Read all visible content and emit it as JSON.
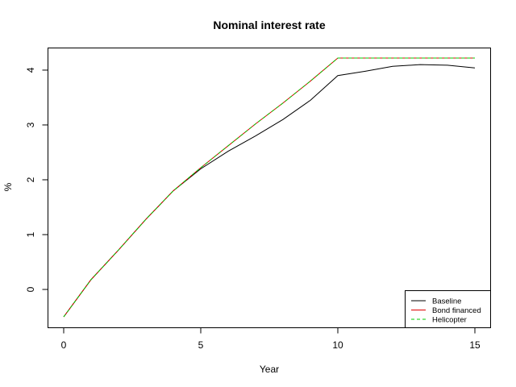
{
  "chart_data": {
    "type": "line",
    "title": "Nominal interest rate",
    "xlabel": "Year",
    "ylabel": "%",
    "xlim": [
      0,
      15
    ],
    "ylim": [
      -0.5,
      4.22
    ],
    "xticks": [
      0,
      5,
      10,
      15
    ],
    "yticks": [
      0,
      1,
      2,
      3,
      4
    ],
    "grid": false,
    "legend_position": "bottom-right",
    "x": [
      0,
      1,
      2,
      3,
      4,
      5,
      6,
      7,
      8,
      9,
      10,
      11,
      12,
      13,
      14,
      15
    ],
    "series": [
      {
        "name": "Baseline",
        "color": "#000000",
        "dash": "solid",
        "values": [
          -0.5,
          0.18,
          0.72,
          1.28,
          1.8,
          2.2,
          2.52,
          2.8,
          3.1,
          3.45,
          3.9,
          3.98,
          4.07,
          4.1,
          4.09,
          4.04
        ]
      },
      {
        "name": "Bond financed",
        "color": "#df0000",
        "dash": "solid",
        "values": [
          -0.5,
          0.18,
          0.72,
          1.28,
          1.8,
          2.22,
          2.62,
          3.02,
          3.4,
          3.8,
          4.22,
          4.22,
          4.22,
          4.22,
          4.22,
          4.22
        ]
      },
      {
        "name": "Helicopter",
        "color": "#00cd00",
        "dash": "dashed",
        "values": [
          -0.5,
          0.18,
          0.72,
          1.28,
          1.8,
          2.22,
          2.62,
          3.02,
          3.4,
          3.8,
          4.22,
          4.22,
          4.22,
          4.22,
          4.22,
          4.22
        ]
      }
    ]
  }
}
